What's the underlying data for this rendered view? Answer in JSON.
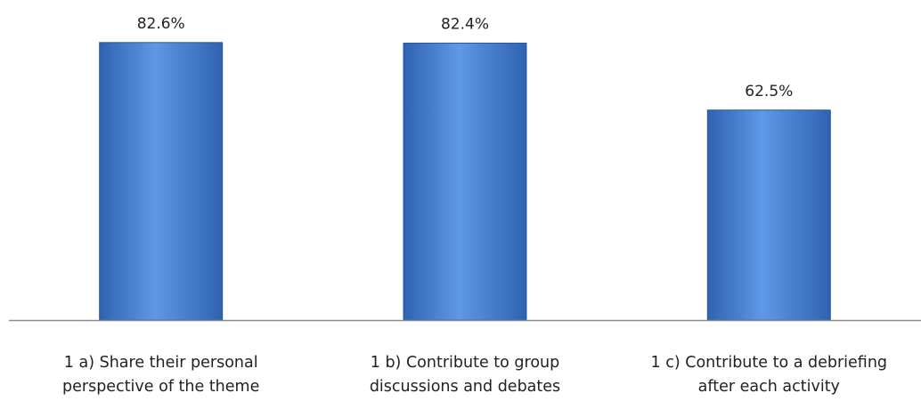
{
  "chart_data": {
    "type": "bar",
    "title": "",
    "xlabel": "",
    "ylabel": "",
    "ylim": [
      0,
      100
    ],
    "grid": false,
    "legend": "none",
    "value_format": "percent",
    "colors": {
      "bar_fill": "#4a84d6",
      "bar_fill_light": "#5e98e6",
      "bar_fill_dark": "#2f63b0",
      "bar_stroke": "#2a58a0",
      "axis": "#8c8c8c",
      "text": "#222222"
    },
    "categories": [
      [
        "1 a) Share their personal",
        "perspective of the theme"
      ],
      [
        "1 b) Contribute to group",
        "discussions and debates"
      ],
      [
        "1 c) Contribute to a debriefing",
        "after each activity"
      ]
    ],
    "values": [
      82.6,
      82.4,
      62.5
    ],
    "data_labels": [
      "82.6%",
      "82.4%",
      "62.5%"
    ]
  }
}
